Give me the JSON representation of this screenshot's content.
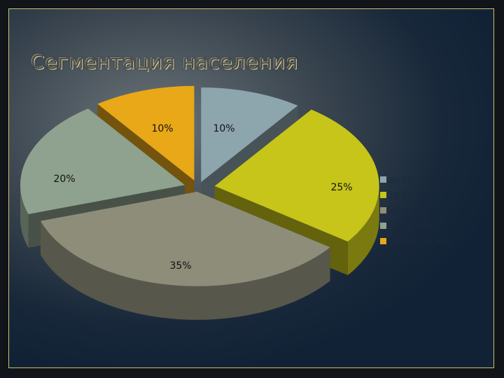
{
  "title": "Сегментация населения",
  "chart_data": {
    "type": "pie",
    "categories": [
      "до 18 лет",
      "18-25 лет",
      "26-40 лет",
      "41-55 лет",
      "свыше 55 лет"
    ],
    "values": [
      10,
      25,
      35,
      20,
      10
    ],
    "labels": [
      "10%",
      "25%",
      "35%",
      "20%",
      "10%"
    ],
    "colors": [
      "#8da6ad",
      "#c7c41a",
      "#8d8d79",
      "#8fa28f",
      "#e8a818"
    ],
    "legend_position": "right",
    "exploded": true,
    "three_d": true
  }
}
